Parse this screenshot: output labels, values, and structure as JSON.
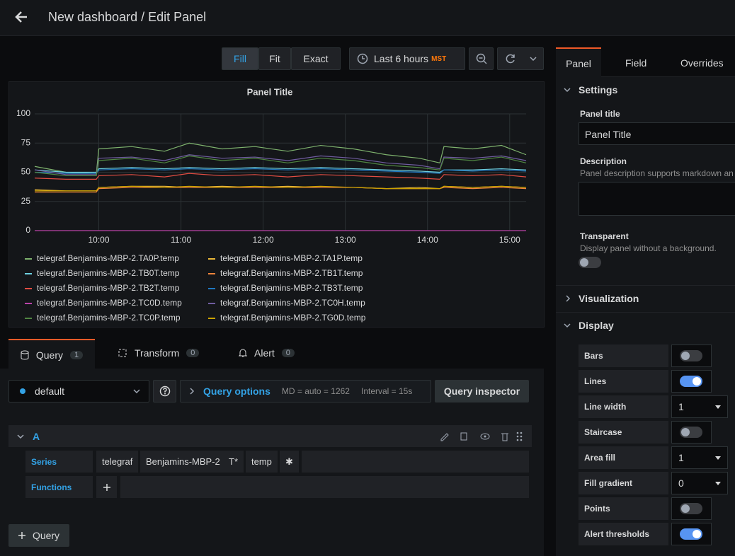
{
  "header": {
    "title": "New dashboard / Edit Panel"
  },
  "toolbar": {
    "view_modes": [
      "Fill",
      "Fit",
      "Exact"
    ],
    "time_range": "Last 6 hours",
    "timezone": "MST"
  },
  "chart_data": {
    "type": "line",
    "title": "Panel Title",
    "x": [
      9.22,
      9.6,
      9.97,
      10.0,
      10.4,
      10.8,
      11.1,
      11.5,
      11.9,
      12.3,
      12.7,
      13.1,
      13.5,
      13.9,
      14.15,
      14.2,
      14.55,
      14.9,
      15.2
    ],
    "xlim": [
      9.22,
      15.2
    ],
    "xticks": [
      {
        "value": 10,
        "label": "10:00"
      },
      {
        "value": 11,
        "label": "11:00"
      },
      {
        "value": 12,
        "label": "12:00"
      },
      {
        "value": 13,
        "label": "13:00"
      },
      {
        "value": 14,
        "label": "14:00"
      },
      {
        "value": 15,
        "label": "15:00"
      }
    ],
    "ylim": [
      0,
      100
    ],
    "yticks": [
      0,
      25,
      50,
      75,
      100
    ],
    "grid": true,
    "series": [
      {
        "name": "telegraf.Benjamins-MBP-2.TA0P.temp",
        "color": "#7eb26d",
        "values": [
          55,
          50,
          49,
          70,
          72,
          68,
          75,
          70,
          72,
          68,
          73,
          70,
          65,
          62,
          58,
          72,
          70,
          73,
          65
        ]
      },
      {
        "name": "telegraf.Benjamins-MBP-2.TA1P.temp",
        "color": "#eab839",
        "values": [
          35,
          34,
          34,
          37,
          38,
          38,
          37,
          38,
          37,
          38,
          37,
          37,
          36,
          37,
          36,
          38,
          37,
          38,
          37
        ]
      },
      {
        "name": "telegraf.Benjamins-MBP-2.TB0T.temp",
        "color": "#6ed0e0",
        "values": [
          52,
          50,
          50,
          53,
          54,
          53,
          54,
          53,
          54,
          53,
          54,
          53,
          52,
          51,
          50,
          52,
          52,
          53,
          52
        ]
      },
      {
        "name": "telegraf.Benjamins-MBP-2.TB1T.temp",
        "color": "#ef843c",
        "values": [
          33,
          33,
          33,
          36,
          37,
          37,
          37,
          37,
          37,
          37,
          37,
          37,
          36,
          36,
          36,
          37,
          36,
          37,
          36
        ]
      },
      {
        "name": "telegraf.Benjamins-MBP-2.TB2T.temp",
        "color": "#e24d42",
        "values": [
          45,
          44,
          44,
          47,
          48,
          46,
          49,
          47,
          48,
          46,
          48,
          47,
          46,
          45,
          44,
          48,
          47,
          48,
          46
        ]
      },
      {
        "name": "telegraf.Benjamins-MBP-2.TB3T.temp",
        "color": "#1f78c1",
        "values": [
          50,
          49,
          49,
          52,
          53,
          52,
          53,
          52,
          53,
          52,
          53,
          52,
          51,
          50,
          49,
          52,
          51,
          52,
          51
        ]
      },
      {
        "name": "telegraf.Benjamins-MBP-2.TC0D.temp",
        "color": "#ba43a9",
        "values": [
          0,
          0,
          0,
          0,
          0,
          0,
          0,
          0,
          0,
          0,
          0,
          0,
          0,
          0,
          0,
          0,
          0,
          0,
          0
        ]
      },
      {
        "name": "telegraf.Benjamins-MBP-2.TC0H.temp",
        "color": "#705da0",
        "values": [
          52,
          48,
          48,
          62,
          63,
          60,
          65,
          62,
          63,
          60,
          64,
          62,
          58,
          56,
          53,
          63,
          62,
          64,
          60
        ]
      },
      {
        "name": "telegraf.Benjamins-MBP-2.TC0P.temp",
        "color": "#508642",
        "values": [
          50,
          47,
          47,
          60,
          62,
          58,
          64,
          60,
          62,
          58,
          62,
          60,
          56,
          54,
          52,
          62,
          60,
          63,
          58
        ]
      },
      {
        "name": "telegraf.Benjamins-MBP-2.TG0D.temp",
        "color": "#cca300",
        "values": [
          34,
          34,
          34,
          37,
          38,
          37,
          38,
          37,
          38,
          37,
          38,
          37,
          36,
          36,
          36,
          38,
          37,
          38,
          37
        ]
      }
    ]
  },
  "query_tabs": [
    {
      "label": "Query",
      "count": 1
    },
    {
      "label": "Transform",
      "count": 0
    },
    {
      "label": "Alert",
      "count": 0
    }
  ],
  "query_bar": {
    "datasource": "default",
    "options": "Query options",
    "max_data_points": "MD = auto = 1262",
    "interval": "Interval = 15s",
    "inspector": "Query inspector"
  },
  "query": {
    "ref": "A",
    "series_label": "Series",
    "segments": [
      "telegraf",
      "Benjamins-MBP-2",
      "T*",
      "temp",
      "✱"
    ],
    "functions_label": "Functions",
    "add_query": "Query"
  },
  "options_pane": {
    "tabs": [
      "Panel",
      "Field",
      "Overrides"
    ],
    "settings": {
      "title": "Settings",
      "panel_title_label": "Panel title",
      "panel_title_value": "Panel Title",
      "description_label": "Description",
      "description_hint": "Panel description supports markdown an",
      "transparent_label": "Transparent",
      "transparent_hint": "Display panel without a background.",
      "transparent": false
    },
    "visualization": "Visualization",
    "display": {
      "title": "Display",
      "options": [
        {
          "label": "Bars",
          "toggle": false
        },
        {
          "label": "Lines",
          "toggle": true
        },
        {
          "label": "Line width",
          "select": 1
        },
        {
          "label": "Staircase",
          "toggle": false
        },
        {
          "label": "Area fill",
          "select": 1
        },
        {
          "label": "Fill gradient",
          "select": 0
        },
        {
          "label": "Points",
          "toggle": false
        },
        {
          "label": "Alert thresholds",
          "toggle": true
        }
      ]
    }
  }
}
